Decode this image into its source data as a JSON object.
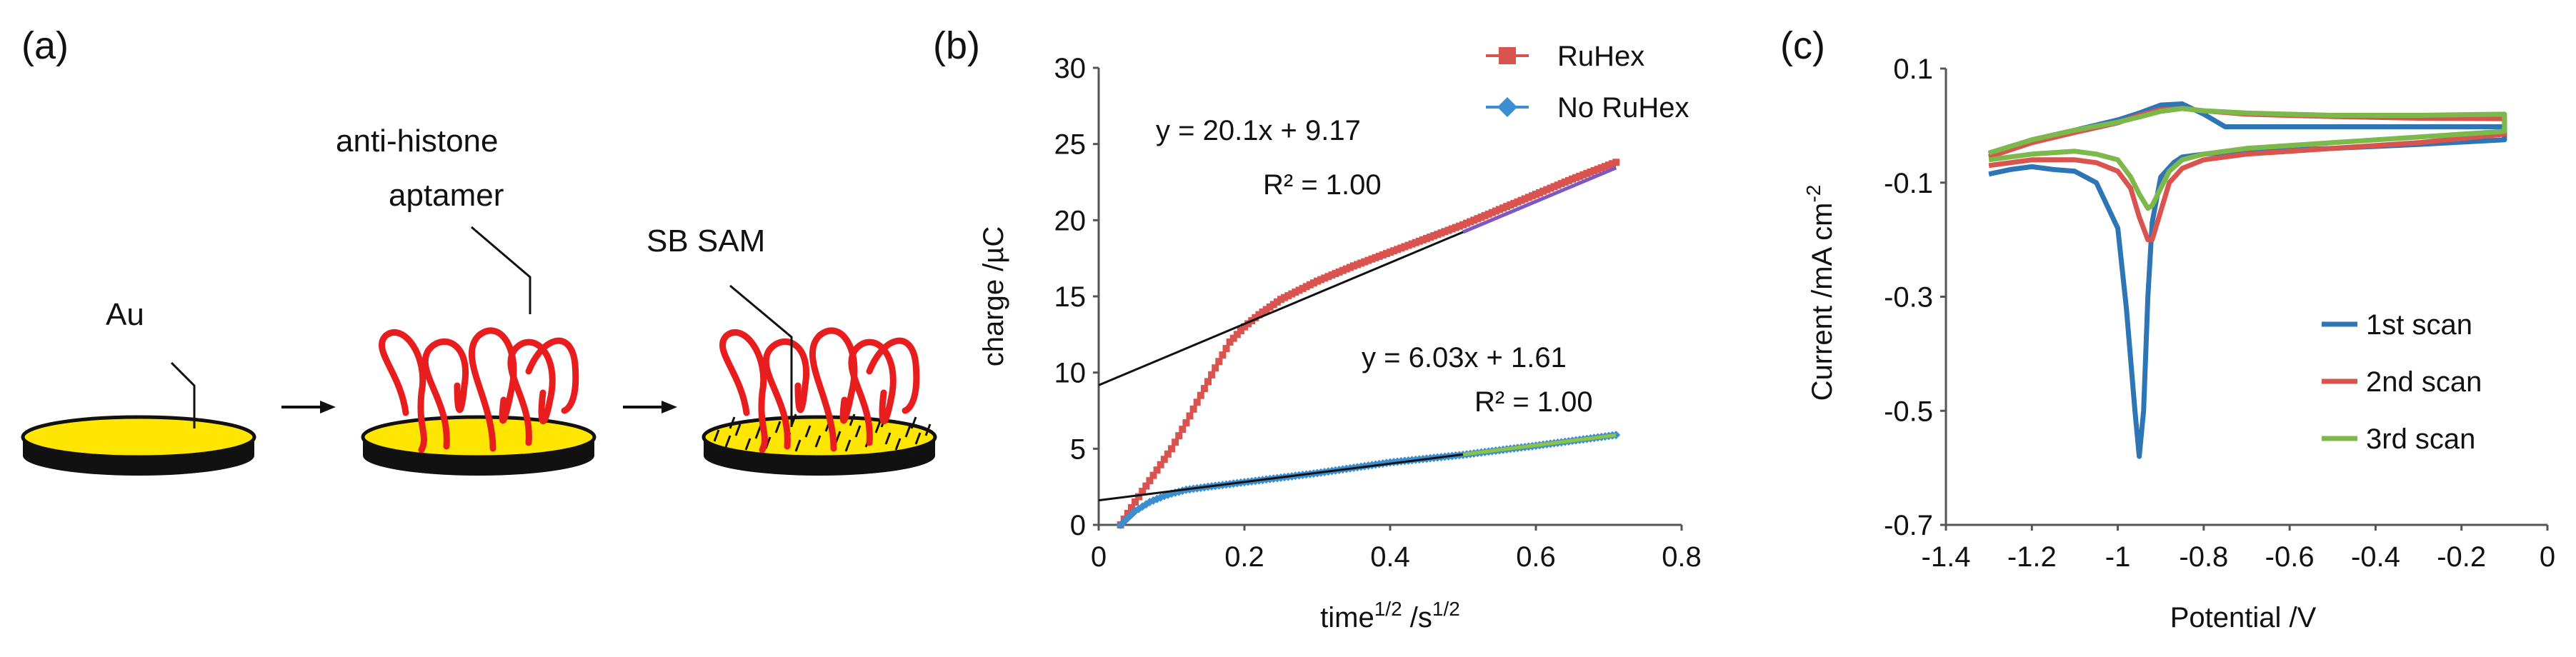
{
  "panel_labels": {
    "a": "(a)",
    "b": "(b)",
    "c": "(c)"
  },
  "schematic": {
    "labels": {
      "au": "Au",
      "aptamer_line1": "anti-histone",
      "aptamer_line2": "aptamer",
      "sam": "SB SAM"
    },
    "colors": {
      "gold": "#FFE600",
      "aptamer": "#E81E1E",
      "base": "#111111"
    }
  },
  "chart_data": [
    {
      "id": "b",
      "type": "line",
      "title": "",
      "xlabel": "time",
      "xlabel_sup": "1/2",
      "xlabel_mid": " /s",
      "xlabel_sup2": "1/2",
      "ylabel": "charge /µC",
      "xlim": [
        0,
        0.8
      ],
      "ylim": [
        0,
        30
      ],
      "xticks": [
        0,
        0.2,
        0.4,
        0.6,
        0.8
      ],
      "xtick_labels": [
        "0",
        "0.2",
        "0.4",
        "0.6",
        "0.8"
      ],
      "yticks": [
        0,
        5,
        10,
        15,
        20,
        25,
        30
      ],
      "ytick_labels": [
        "0",
        "5",
        "10",
        "15",
        "20",
        "25",
        "30"
      ],
      "legend": [
        "RuHex",
        "No RuHex"
      ],
      "series": [
        {
          "name": "RuHex",
          "color": "#D9534F",
          "marker": "square",
          "x": [
            0.03,
            0.05,
            0.08,
            0.1,
            0.12,
            0.14,
            0.16,
            0.18,
            0.2,
            0.22,
            0.25,
            0.3,
            0.35,
            0.4,
            0.45,
            0.5,
            0.55,
            0.6,
            0.65,
            0.71
          ],
          "y": [
            0,
            1.5,
            3.6,
            5.0,
            6.7,
            8.5,
            10.3,
            12.0,
            13.0,
            13.8,
            14.8,
            16.0,
            17.0,
            17.9,
            18.8,
            19.7,
            20.7,
            21.7,
            22.7,
            23.8
          ]
        },
        {
          "name": "No RuHex",
          "color": "#3B8ED0",
          "marker": "diamond",
          "x": [
            0.03,
            0.05,
            0.07,
            0.09,
            0.1,
            0.12,
            0.15,
            0.2,
            0.3,
            0.4,
            0.5,
            0.6,
            0.71
          ],
          "y": [
            0,
            0.9,
            1.5,
            1.9,
            2.05,
            2.3,
            2.5,
            2.8,
            3.4,
            4.1,
            4.6,
            5.2,
            5.9
          ]
        }
      ],
      "fits": [
        {
          "equation": "y = 20.1x + 9.17",
          "r2": "R² = 1.00",
          "slope": 20.1,
          "intercept": 9.17,
          "x_range": [
            0.0,
            0.71
          ],
          "color": "#111111",
          "overlay_color": "#7E57C2",
          "overlay_range": [
            0.5,
            0.71
          ]
        },
        {
          "equation": "y = 6.03x + 1.61",
          "r2": "R² = 1.00",
          "slope": 6.03,
          "intercept": 1.61,
          "x_range": [
            0.0,
            0.71
          ],
          "color": "#111111",
          "overlay_color": "#8BC34A",
          "overlay_range": [
            0.5,
            0.71
          ]
        }
      ]
    },
    {
      "id": "c",
      "type": "line",
      "title": "",
      "xlabel": "Potential /V",
      "ylabel": "Current /mA cm",
      "ylabel_sup": "-2",
      "xlim": [
        -1.4,
        0
      ],
      "ylim": [
        -0.7,
        0.1
      ],
      "xticks": [
        -1.4,
        -1.2,
        -1.0,
        -0.8,
        -0.6,
        -0.4,
        -0.2,
        0
      ],
      "xtick_labels": [
        "-1.4",
        "-1.2",
        "-1",
        "-0.8",
        "-0.6",
        "-0.4",
        "-0.2",
        "0"
      ],
      "yticks": [
        0.1,
        -0.1,
        -0.3,
        -0.5,
        -0.7
      ],
      "ytick_labels": [
        "0.1",
        "-0.1",
        "-0.3",
        "-0.5",
        "-0.7"
      ],
      "legend": [
        "1st scan",
        "2nd scan",
        "3rd scan"
      ],
      "series": [
        {
          "name": "1st scan",
          "color": "#2E75B6",
          "x": [
            -1.3,
            -1.25,
            -1.2,
            -1.15,
            -1.1,
            -1.05,
            -1.0,
            -0.98,
            -0.96,
            -0.95,
            -0.94,
            -0.93,
            -0.92,
            -0.9,
            -0.87,
            -0.85,
            -0.8,
            -0.7,
            -0.5,
            -0.3,
            -0.1,
            -0.1,
            -0.2,
            -0.4,
            -0.6,
            -0.75,
            -0.8,
            -0.85,
            -0.9,
            -0.95,
            -1.0,
            -1.1,
            -1.2,
            -1.3
          ],
          "y": [
            -0.085,
            -0.077,
            -0.072,
            -0.077,
            -0.08,
            -0.1,
            -0.18,
            -0.32,
            -0.5,
            -0.58,
            -0.5,
            -0.3,
            -0.17,
            -0.09,
            -0.065,
            -0.055,
            -0.05,
            -0.045,
            -0.04,
            -0.033,
            -0.025,
            -0.002,
            -0.002,
            -0.002,
            -0.002,
            -0.002,
            0.02,
            0.038,
            0.036,
            0.022,
            0.01,
            -0.008,
            -0.025,
            -0.05
          ]
        },
        {
          "name": "2nd scan",
          "color": "#D9534F",
          "x": [
            -1.3,
            -1.2,
            -1.1,
            -1.05,
            -1.0,
            -0.97,
            -0.95,
            -0.93,
            -0.92,
            -0.9,
            -0.88,
            -0.85,
            -0.8,
            -0.7,
            -0.5,
            -0.3,
            -0.1,
            -0.1,
            -0.3,
            -0.5,
            -0.7,
            -0.8,
            -0.85,
            -0.9,
            -0.95,
            -1.0,
            -1.1,
            -1.2,
            -1.3
          ],
          "y": [
            -0.07,
            -0.06,
            -0.06,
            -0.065,
            -0.08,
            -0.11,
            -0.16,
            -0.2,
            -0.2,
            -0.15,
            -0.1,
            -0.075,
            -0.06,
            -0.05,
            -0.04,
            -0.03,
            -0.015,
            0.012,
            0.013,
            0.016,
            0.02,
            0.026,
            0.03,
            0.028,
            0.018,
            0.005,
            -0.012,
            -0.03,
            -0.055
          ]
        },
        {
          "name": "3rd scan",
          "color": "#7DB84A",
          "x": [
            -1.3,
            -1.2,
            -1.1,
            -1.05,
            -1.0,
            -0.97,
            -0.95,
            -0.93,
            -0.92,
            -0.9,
            -0.88,
            -0.85,
            -0.8,
            -0.7,
            -0.5,
            -0.3,
            -0.1,
            -0.1,
            -0.3,
            -0.5,
            -0.7,
            -0.8,
            -0.85,
            -0.9,
            -0.95,
            -1.0,
            -1.1,
            -1.2,
            -1.3
          ],
          "y": [
            -0.06,
            -0.05,
            -0.045,
            -0.05,
            -0.06,
            -0.09,
            -0.12,
            -0.145,
            -0.14,
            -0.11,
            -0.08,
            -0.06,
            -0.05,
            -0.04,
            -0.03,
            -0.02,
            -0.01,
            0.02,
            0.018,
            0.018,
            0.022,
            0.026,
            0.03,
            0.025,
            0.015,
            0.006,
            -0.008,
            -0.025,
            -0.048
          ]
        }
      ]
    }
  ]
}
